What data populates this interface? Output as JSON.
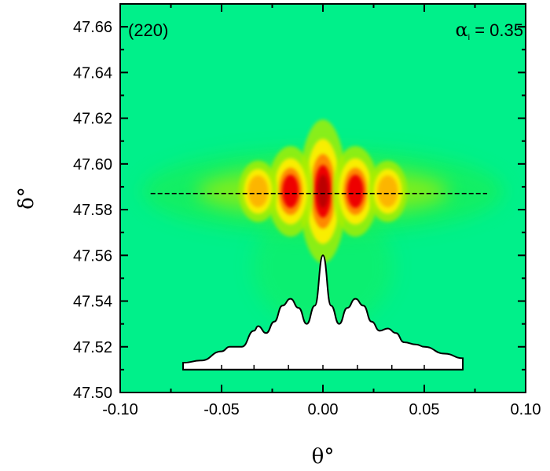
{
  "chart_data": {
    "type": "heatmap",
    "title": "",
    "xlabel": "θ°",
    "ylabel": "δ°",
    "xlim": [
      -0.1,
      0.1
    ],
    "ylim": [
      47.5,
      47.67
    ],
    "x_ticks": [
      "-0.10",
      "-0.05",
      "0.00",
      "0.05",
      "0.10"
    ],
    "x_tick_values": [
      -0.1,
      -0.05,
      0.0,
      0.05,
      0.1
    ],
    "y_ticks": [
      "47.50",
      "47.52",
      "47.54",
      "47.56",
      "47.58",
      "47.60",
      "47.62",
      "47.64",
      "47.66"
    ],
    "y_tick_values": [
      47.5,
      47.52,
      47.54,
      47.56,
      47.58,
      47.6,
      47.62,
      47.64,
      47.66
    ],
    "reflection_label": "(220)",
    "incidence_label": {
      "symbol": "α",
      "subscript": "i",
      "text": " = 0.35"
    },
    "colormap": [
      "#00ee99",
      "#22ee44",
      "#aaee00",
      "#ffee00",
      "#ff8800",
      "#ee0000",
      "#bb0000"
    ],
    "background_color": "#00f08a",
    "peaks": [
      {
        "x": 0.0,
        "y": 47.588,
        "intensity": 1.0,
        "sx": 0.0045,
        "sy": 0.011
      },
      {
        "x": -0.016,
        "y": 47.588,
        "intensity": 0.75,
        "sx": 0.005,
        "sy": 0.008
      },
      {
        "x": 0.016,
        "y": 47.588,
        "intensity": 0.75,
        "sx": 0.005,
        "sy": 0.008
      },
      {
        "x": -0.032,
        "y": 47.588,
        "intensity": 0.45,
        "sx": 0.0055,
        "sy": 0.007
      },
      {
        "x": 0.032,
        "y": 47.588,
        "intensity": 0.45,
        "sx": 0.0055,
        "sy": 0.007
      }
    ],
    "cut_line": {
      "y": 47.587,
      "x_start": -0.085,
      "x_end": 0.081
    },
    "profile": {
      "x_range": [
        -0.069,
        0.069
      ],
      "baseline_y": 47.51,
      "peak_y": 47.56,
      "x": [
        -0.069,
        -0.06,
        -0.05,
        -0.046,
        -0.04,
        -0.034,
        -0.032,
        -0.028,
        -0.024,
        -0.02,
        -0.016,
        -0.012,
        -0.008,
        -0.004,
        0.0,
        0.004,
        0.008,
        0.012,
        0.016,
        0.02,
        0.024,
        0.028,
        0.032,
        0.036,
        0.04,
        0.046,
        0.05,
        0.06,
        0.069
      ],
      "y": [
        47.513,
        47.514,
        47.518,
        47.52,
        47.52,
        47.527,
        47.529,
        47.526,
        47.531,
        47.538,
        47.541,
        47.537,
        47.53,
        47.538,
        47.56,
        47.538,
        47.53,
        47.537,
        47.541,
        47.538,
        47.531,
        47.527,
        47.528,
        47.526,
        47.522,
        47.521,
        47.52,
        47.517,
        47.515
      ]
    }
  }
}
